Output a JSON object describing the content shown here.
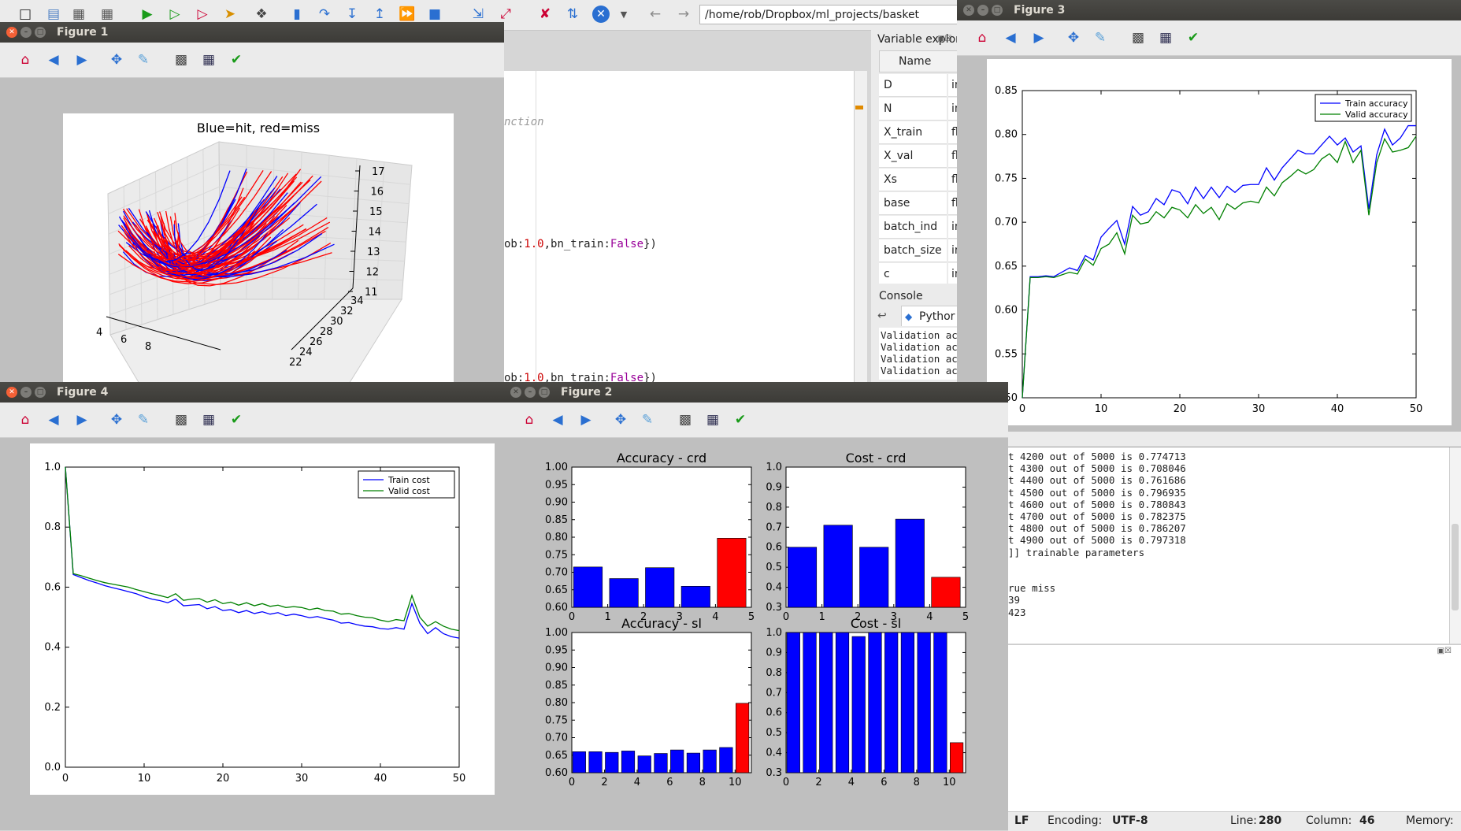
{
  "ide": {
    "path": "/home/rob/Dropbox/ml_projects/basket",
    "code_lines": [
      {
        "text": "nction"
      },
      {
        "pre": "ob:",
        "num": "1.0",
        "mid": ",bn_train:",
        "kw": "False",
        "post": "})"
      },
      {
        "pre": "ob:",
        "num": "1.0",
        "mid": ",bn_train:",
        "kw": "False",
        "post": "})"
      }
    ],
    "var_explorer": {
      "title": "Variable explor",
      "col_name": "Name",
      "rows": [
        {
          "name": "D",
          "type": "in"
        },
        {
          "name": "N",
          "type": "in"
        },
        {
          "name": "X_train",
          "type": "fl"
        },
        {
          "name": "X_val",
          "type": "fl"
        },
        {
          "name": "Xs",
          "type": "fl"
        },
        {
          "name": "base",
          "type": "fl"
        },
        {
          "name": "batch_ind",
          "type": "in"
        },
        {
          "name": "batch_size",
          "type": "in"
        },
        {
          "name": "c",
          "type": "in"
        }
      ]
    },
    "console": {
      "title": "Console",
      "tab": "Pythor",
      "top_lines": [
        "Validation ac",
        "Validation ac",
        "Validation ac",
        "Validation ac"
      ],
      "lines": [
        "t 4200 out of 5000 is 0.774713",
        "t 4300 out of 5000 is 0.708046",
        "t 4400 out of 5000 is 0.761686",
        "t 4500 out of 5000 is 0.796935",
        "t 4600 out of 5000 is 0.780843",
        "t 4700 out of 5000 is 0.782375",
        "t 4800 out of 5000 is 0.786207",
        "t 4900 out of 5000 is 0.797318",
        "]] trainable parameters",
        "",
        "",
        "rue miss",
        "39",
        "423"
      ]
    },
    "status": {
      "eol": "LF",
      "encoding_label": "Encoding:",
      "encoding": "UTF-8",
      "line_label": "Line:",
      "line": "280",
      "column_label": "Column:",
      "column": "46",
      "memory_label": "Memory:"
    }
  },
  "figures": {
    "fig1": {
      "title": "Figure 1"
    },
    "fig2": {
      "title": "Figure 2"
    },
    "fig3": {
      "title": "Figure 3"
    },
    "fig4": {
      "title": "Figure 4"
    }
  },
  "chart_data": [
    {
      "id": "fig1",
      "type": "line3d",
      "title": "Blue=hit, red=miss",
      "z_ticks": [
        "17",
        "16",
        "15",
        "14",
        "13",
        "12",
        "11"
      ],
      "y_ticks": [
        "34",
        "32",
        "30",
        "28",
        "26",
        "24",
        "22"
      ],
      "x_ticks": [
        "4",
        "6",
        "8"
      ],
      "series": [
        {
          "color": "#0000ff"
        },
        {
          "color": "#ff0000"
        }
      ]
    },
    {
      "id": "fig3",
      "type": "line",
      "xlim": [
        0,
        50
      ],
      "ylim": [
        0.5,
        0.85
      ],
      "x_ticks": [
        0,
        10,
        20,
        30,
        40,
        50
      ],
      "y_ticks": [
        0.5,
        0.55,
        0.6,
        0.65,
        0.7,
        0.75,
        0.8,
        0.85
      ],
      "series": [
        {
          "name": "Train accuracy",
          "color": "#0000ff",
          "values": [
            0.5,
            0.638,
            0.638,
            0.639,
            0.638,
            0.643,
            0.648,
            0.645,
            0.662,
            0.657,
            0.683,
            0.693,
            0.702,
            0.675,
            0.718,
            0.708,
            0.712,
            0.727,
            0.72,
            0.737,
            0.734,
            0.721,
            0.74,
            0.727,
            0.74,
            0.728,
            0.741,
            0.734,
            0.742,
            0.743,
            0.743,
            0.762,
            0.748,
            0.762,
            0.772,
            0.782,
            0.778,
            0.778,
            0.788,
            0.798,
            0.788,
            0.796,
            0.78,
            0.787,
            0.715,
            0.777,
            0.806,
            0.788,
            0.796,
            0.81,
            0.81
          ]
        },
        {
          "name": "Valid accuracy",
          "color": "#008000",
          "values": [
            0.5,
            0.637,
            0.637,
            0.638,
            0.637,
            0.64,
            0.643,
            0.641,
            0.658,
            0.651,
            0.67,
            0.675,
            0.688,
            0.664,
            0.708,
            0.698,
            0.7,
            0.712,
            0.705,
            0.717,
            0.714,
            0.705,
            0.72,
            0.71,
            0.717,
            0.703,
            0.721,
            0.715,
            0.722,
            0.724,
            0.722,
            0.74,
            0.73,
            0.745,
            0.752,
            0.76,
            0.755,
            0.76,
            0.772,
            0.778,
            0.768,
            0.792,
            0.768,
            0.782,
            0.708,
            0.768,
            0.795,
            0.78,
            0.782,
            0.785,
            0.798
          ]
        }
      ],
      "legend": "top-right"
    },
    {
      "id": "fig4",
      "type": "line",
      "xlim": [
        0,
        50
      ],
      "ylim": [
        0,
        1.0
      ],
      "x_ticks": [
        0,
        10,
        20,
        30,
        40,
        50
      ],
      "y_ticks": [
        0.0,
        0.2,
        0.4,
        0.6,
        0.8,
        1.0
      ],
      "series": [
        {
          "name": "Train cost",
          "color": "#0000ff",
          "values": [
            1.0,
            0.642,
            0.632,
            0.622,
            0.614,
            0.605,
            0.598,
            0.592,
            0.585,
            0.578,
            0.568,
            0.56,
            0.555,
            0.548,
            0.56,
            0.538,
            0.54,
            0.542,
            0.528,
            0.535,
            0.522,
            0.525,
            0.515,
            0.522,
            0.512,
            0.518,
            0.51,
            0.515,
            0.505,
            0.51,
            0.505,
            0.498,
            0.502,
            0.495,
            0.49,
            0.48,
            0.482,
            0.475,
            0.47,
            0.468,
            0.462,
            0.46,
            0.465,
            0.46,
            0.545,
            0.48,
            0.445,
            0.465,
            0.445,
            0.435,
            0.43
          ]
        },
        {
          "name": "Valid cost",
          "color": "#008000",
          "values": [
            1.0,
            0.645,
            0.638,
            0.63,
            0.622,
            0.615,
            0.61,
            0.605,
            0.6,
            0.592,
            0.585,
            0.578,
            0.572,
            0.565,
            0.578,
            0.556,
            0.56,
            0.562,
            0.55,
            0.558,
            0.545,
            0.55,
            0.54,
            0.548,
            0.538,
            0.545,
            0.536,
            0.54,
            0.532,
            0.535,
            0.532,
            0.525,
            0.53,
            0.522,
            0.52,
            0.51,
            0.512,
            0.505,
            0.5,
            0.498,
            0.49,
            0.485,
            0.492,
            0.488,
            0.572,
            0.5,
            0.47,
            0.485,
            0.47,
            0.46,
            0.455
          ]
        }
      ],
      "legend": "top-right"
    },
    {
      "id": "fig2a",
      "type": "bar",
      "title": "Accuracy - crd",
      "ylim": [
        0.6,
        1.0
      ],
      "y_ticks": [
        0.6,
        0.65,
        0.7,
        0.75,
        0.8,
        0.85,
        0.9,
        0.95,
        1.0
      ],
      "x_ticks": [
        0,
        1,
        2,
        3,
        4,
        5
      ],
      "xlim": [
        0,
        5
      ],
      "bars": [
        {
          "x": 0,
          "value": 0.715,
          "color": "#0000ff"
        },
        {
          "x": 1,
          "value": 0.682,
          "color": "#0000ff"
        },
        {
          "x": 2,
          "value": 0.713,
          "color": "#0000ff"
        },
        {
          "x": 3,
          "value": 0.66,
          "color": "#0000ff"
        },
        {
          "x": 4,
          "value": 0.797,
          "color": "#ff0000"
        }
      ]
    },
    {
      "id": "fig2b",
      "type": "bar",
      "title": "Cost - crd",
      "ylim": [
        0.3,
        1.0
      ],
      "y_ticks": [
        0.3,
        0.4,
        0.5,
        0.6,
        0.7,
        0.8,
        0.9,
        1.0
      ],
      "x_ticks": [
        0,
        1,
        2,
        3,
        4,
        5
      ],
      "xlim": [
        0,
        5
      ],
      "bars": [
        {
          "x": 0,
          "value": 0.6,
          "color": "#0000ff"
        },
        {
          "x": 1,
          "value": 0.71,
          "color": "#0000ff"
        },
        {
          "x": 2,
          "value": 0.6,
          "color": "#0000ff"
        },
        {
          "x": 3,
          "value": 0.74,
          "color": "#0000ff"
        },
        {
          "x": 4,
          "value": 0.45,
          "color": "#ff0000"
        }
      ]
    },
    {
      "id": "fig2c",
      "type": "bar",
      "title": "Accuracy - sl",
      "ylim": [
        0.6,
        1.0
      ],
      "y_ticks": [
        0.6,
        0.65,
        0.7,
        0.75,
        0.8,
        0.85,
        0.9,
        0.95,
        1.0
      ],
      "x_ticks": [
        0,
        2,
        4,
        6,
        8,
        10
      ],
      "xlim": [
        0,
        11
      ],
      "bars": [
        {
          "x": 0,
          "value": 0.66,
          "color": "#0000ff"
        },
        {
          "x": 1,
          "value": 0.66,
          "color": "#0000ff"
        },
        {
          "x": 2,
          "value": 0.658,
          "color": "#0000ff"
        },
        {
          "x": 3,
          "value": 0.662,
          "color": "#0000ff"
        },
        {
          "x": 4,
          "value": 0.648,
          "color": "#0000ff"
        },
        {
          "x": 5,
          "value": 0.655,
          "color": "#0000ff"
        },
        {
          "x": 6,
          "value": 0.665,
          "color": "#0000ff"
        },
        {
          "x": 7,
          "value": 0.656,
          "color": "#0000ff"
        },
        {
          "x": 8,
          "value": 0.665,
          "color": "#0000ff"
        },
        {
          "x": 9,
          "value": 0.672,
          "color": "#0000ff"
        },
        {
          "x": 10,
          "value": 0.798,
          "color": "#ff0000"
        }
      ]
    },
    {
      "id": "fig2d",
      "type": "bar",
      "title": "Cost - sl",
      "ylim": [
        0.3,
        1.0
      ],
      "y_ticks": [
        0.3,
        0.4,
        0.5,
        0.6,
        0.7,
        0.8,
        0.9,
        1.0
      ],
      "x_ticks": [
        0,
        2,
        4,
        6,
        8,
        10
      ],
      "xlim": [
        0,
        11
      ],
      "bars": [
        {
          "x": 0,
          "value": 1.0,
          "color": "#0000ff"
        },
        {
          "x": 1,
          "value": 1.0,
          "color": "#0000ff"
        },
        {
          "x": 2,
          "value": 1.0,
          "color": "#0000ff"
        },
        {
          "x": 3,
          "value": 1.0,
          "color": "#0000ff"
        },
        {
          "x": 4,
          "value": 0.98,
          "color": "#0000ff"
        },
        {
          "x": 5,
          "value": 1.0,
          "color": "#0000ff"
        },
        {
          "x": 6,
          "value": 1.0,
          "color": "#0000ff"
        },
        {
          "x": 7,
          "value": 1.0,
          "color": "#0000ff"
        },
        {
          "x": 8,
          "value": 1.0,
          "color": "#0000ff"
        },
        {
          "x": 9,
          "value": 1.0,
          "color": "#0000ff"
        },
        {
          "x": 10,
          "value": 0.45,
          "color": "#ff0000"
        }
      ]
    }
  ]
}
